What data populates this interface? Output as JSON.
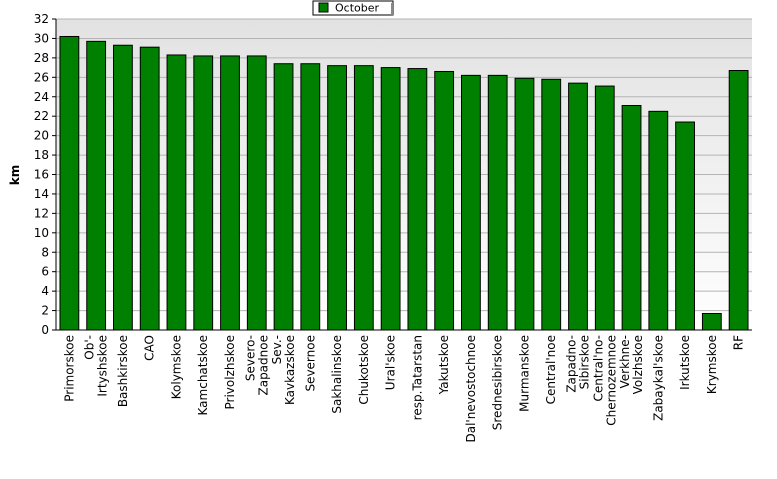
{
  "chart_data": {
    "type": "bar",
    "ylabel": "km",
    "ylim": [
      0,
      32
    ],
    "ytick_step": 2,
    "grid": true,
    "legend_position": "top-center",
    "series": [
      {
        "name": "October",
        "color": "#008000",
        "values": [
          30.2,
          29.7,
          29.3,
          29.1,
          28.3,
          28.2,
          28.2,
          28.2,
          27.4,
          27.4,
          27.2,
          27.2,
          27.0,
          26.9,
          26.6,
          26.2,
          26.2,
          25.9,
          25.8,
          25.4,
          25.1,
          23.1,
          22.5,
          21.4,
          1.7,
          26.7
        ]
      }
    ],
    "categories": [
      "Primorskoe",
      "Ob'-Irtyshskoe",
      "Bashkirskoe",
      "CAO",
      "Kolymskoe",
      "Kamchatskoe",
      "Privolzhskoe",
      "Severo-Zapadnoe",
      "Sev.-Kavkazskoe",
      "Severnoe",
      "Sakhalinskoe",
      "Chukotskoe",
      "Ural'skoe",
      "resp.Tatarstan",
      "Yakutskoe",
      "Dal'nevostochnoe",
      "Srednesibirskoe",
      "Murmanskoe",
      "Central'noe",
      "Zapadno-Sibirskoe",
      "Central'no-Chernozemnoe",
      "Verkhne-Volzhskoe",
      "Zabaykal'skoe",
      "Irkutskoe",
      "Krymskoe",
      "RF"
    ],
    "category_lines": [
      [
        "Primorskoe"
      ],
      [
        "Ob'-",
        "Irtyshskoe"
      ],
      [
        "Bashkirskoe"
      ],
      [
        "CAO"
      ],
      [
        "Kolymskoe"
      ],
      [
        "Kamchatskoe"
      ],
      [
        "Privolzhskoe"
      ],
      [
        "Severo-",
        "Zapadnoe"
      ],
      [
        "Sev.-",
        "Kavkazskoe"
      ],
      [
        "Severnoe"
      ],
      [
        "Sakhalinskoe"
      ],
      [
        "Chukotskoe"
      ],
      [
        "Ural'skoe"
      ],
      [
        "resp.Tatarstan"
      ],
      [
        "Yakutskoe"
      ],
      [
        "Dal'nevostochnoe"
      ],
      [
        "Srednesibirskoe"
      ],
      [
        "Murmanskoe"
      ],
      [
        "Central'noe"
      ],
      [
        "Zapadno-",
        "Sibirskoe"
      ],
      [
        "Central'no-",
        "Chernozemnoe"
      ],
      [
        "Verkhne-",
        "Volzhskoe"
      ],
      [
        "Zabaykal'skoe"
      ],
      [
        "Irkutskoe"
      ],
      [
        "Krymskoe"
      ],
      [
        "RF"
      ]
    ]
  }
}
